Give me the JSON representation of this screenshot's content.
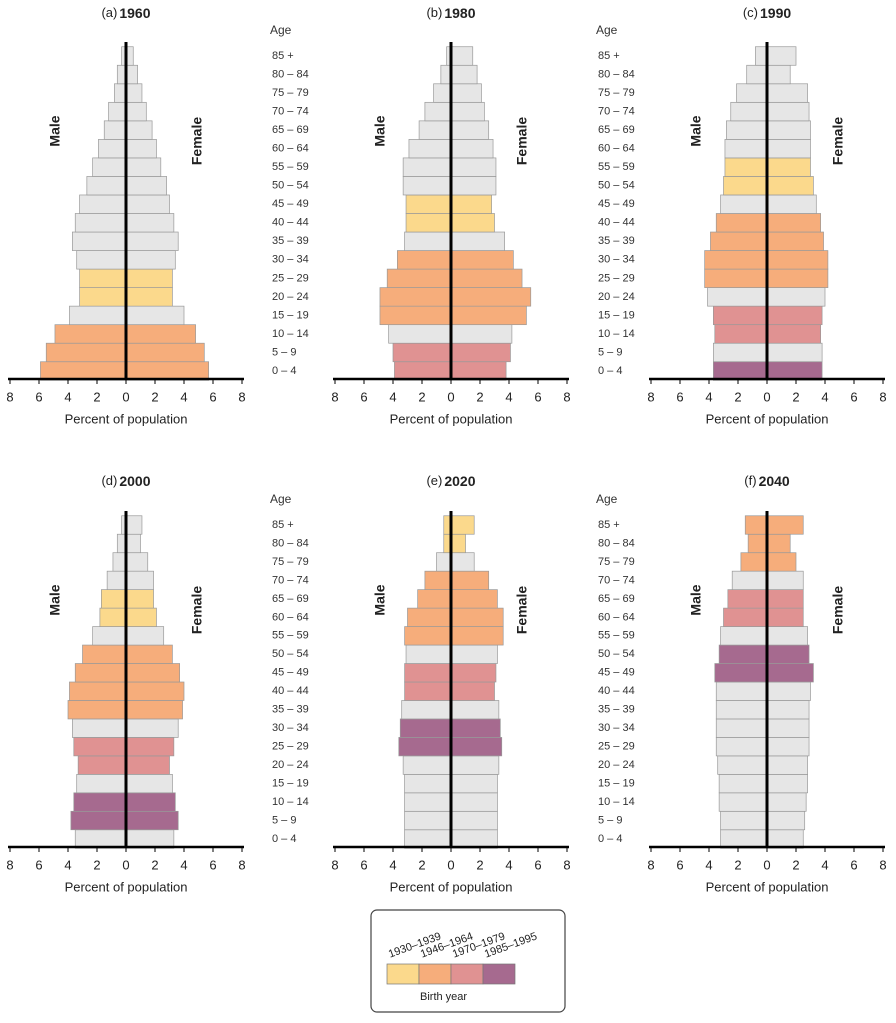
{
  "chart_data": {
    "type": "pyramid",
    "x_label": "Percent of population",
    "male_label": "Male",
    "female_label": "Female",
    "age_label": "Age",
    "categories": [
      "0 – 4",
      "5 – 9",
      "10 – 14",
      "15 – 19",
      "20 – 24",
      "25 – 29",
      "30 – 34",
      "35 – 39",
      "40 – 44",
      "45 – 49",
      "50 – 54",
      "55 – 59",
      "60 – 64",
      "65 – 69",
      "70 – 74",
      "75 – 79",
      "80 – 84",
      "85 +"
    ],
    "xlim": [
      0,
      8
    ],
    "xticks": [
      0,
      2,
      4,
      6,
      8
    ],
    "legend": {
      "title": "Birth year",
      "items": [
        {
          "name": "1930–1939",
          "color": "#fbd98c"
        },
        {
          "name": "1946–1964",
          "color": "#f6ad7b"
        },
        {
          "name": "1970–1979",
          "color": "#e09292"
        },
        {
          "name": "1985–1995",
          "color": "#a66a8f"
        }
      ]
    },
    "panels": [
      {
        "label": "(a)",
        "title": "1960",
        "male": [
          5.9,
          5.5,
          4.9,
          3.9,
          3.2,
          3.2,
          3.4,
          3.7,
          3.5,
          3.2,
          2.7,
          2.3,
          1.9,
          1.5,
          1.2,
          0.8,
          0.6,
          0.3
        ],
        "female": [
          5.7,
          5.4,
          4.8,
          4.0,
          3.2,
          3.2,
          3.4,
          3.6,
          3.3,
          3.0,
          2.8,
          2.4,
          2.1,
          1.8,
          1.4,
          1.1,
          0.8,
          0.5
        ],
        "colors": [
          "#f6ad7b",
          "#f6ad7b",
          "#f6ad7b",
          "#e6e6e6",
          "#fbd98c",
          "#fbd98c",
          "#e6e6e6",
          "#e6e6e6",
          "#e6e6e6",
          "#e6e6e6",
          "#e6e6e6",
          "#e6e6e6",
          "#e6e6e6",
          "#e6e6e6",
          "#e6e6e6",
          "#e6e6e6",
          "#e6e6e6",
          "#e6e6e6"
        ]
      },
      {
        "label": "(b)",
        "title": "1980",
        "male": [
          3.9,
          4.0,
          4.3,
          4.9,
          4.9,
          4.4,
          3.7,
          3.2,
          3.1,
          3.1,
          3.3,
          3.3,
          2.9,
          2.2,
          1.8,
          1.2,
          0.7,
          0.3
        ],
        "female": [
          3.8,
          4.1,
          4.2,
          5.2,
          5.5,
          4.9,
          4.3,
          3.7,
          3.0,
          2.8,
          3.1,
          3.1,
          2.9,
          2.6,
          2.3,
          2.1,
          1.8,
          1.5
        ],
        "colors": [
          "#e09292",
          "#e09292",
          "#e6e6e6",
          "#f6ad7b",
          "#f6ad7b",
          "#f6ad7b",
          "#f6ad7b",
          "#e6e6e6",
          "#fbd98c",
          "#fbd98c",
          "#e6e6e6",
          "#e6e6e6",
          "#e6e6e6",
          "#e6e6e6",
          "#e6e6e6",
          "#e6e6e6",
          "#e6e6e6",
          "#e6e6e6"
        ]
      },
      {
        "label": "(c)",
        "title": "1990",
        "male": [
          3.7,
          3.7,
          3.6,
          3.7,
          4.1,
          4.3,
          4.3,
          3.9,
          3.5,
          3.2,
          3.0,
          2.9,
          2.9,
          2.8,
          2.5,
          2.1,
          1.4,
          0.8
        ],
        "female": [
          3.8,
          3.8,
          3.7,
          3.8,
          4.0,
          4.2,
          4.2,
          3.9,
          3.7,
          3.4,
          3.2,
          3.0,
          3.0,
          3.0,
          2.9,
          2.8,
          1.6,
          2.0
        ],
        "colors": [
          "#a66a8f",
          "#e6e6e6",
          "#e09292",
          "#e09292",
          "#e6e6e6",
          "#f6ad7b",
          "#f6ad7b",
          "#f6ad7b",
          "#f6ad7b",
          "#e6e6e6",
          "#fbd98c",
          "#fbd98c",
          "#e6e6e6",
          "#e6e6e6",
          "#e6e6e6",
          "#e6e6e6",
          "#e6e6e6",
          "#e6e6e6"
        ]
      },
      {
        "label": "(d)",
        "title": "2000",
        "male": [
          3.5,
          3.8,
          3.6,
          3.4,
          3.3,
          3.6,
          3.7,
          4.0,
          3.9,
          3.5,
          3.0,
          2.3,
          1.8,
          1.7,
          1.3,
          0.9,
          0.6,
          0.3
        ],
        "female": [
          3.3,
          3.6,
          3.4,
          3.2,
          3.0,
          3.3,
          3.6,
          3.9,
          4.0,
          3.7,
          3.2,
          2.6,
          2.1,
          1.9,
          1.9,
          1.5,
          1.0,
          1.1
        ],
        "colors": [
          "#e6e6e6",
          "#a66a8f",
          "#a66a8f",
          "#e6e6e6",
          "#e09292",
          "#e09292",
          "#e6e6e6",
          "#f6ad7b",
          "#f6ad7b",
          "#f6ad7b",
          "#f6ad7b",
          "#e6e6e6",
          "#fbd98c",
          "#fbd98c",
          "#e6e6e6",
          "#e6e6e6",
          "#e6e6e6",
          "#e6e6e6"
        ]
      },
      {
        "label": "(e)",
        "title": "2020",
        "male": [
          3.2,
          3.2,
          3.2,
          3.2,
          3.3,
          3.6,
          3.5,
          3.4,
          3.2,
          3.2,
          3.1,
          3.2,
          3.0,
          2.3,
          1.8,
          1.0,
          0.5,
          0.5
        ],
        "female": [
          3.2,
          3.2,
          3.2,
          3.2,
          3.3,
          3.5,
          3.4,
          3.3,
          3.0,
          3.1,
          3.2,
          3.6,
          3.6,
          3.2,
          2.6,
          1.6,
          1.0,
          1.6
        ],
        "colors": [
          "#e6e6e6",
          "#e6e6e6",
          "#e6e6e6",
          "#e6e6e6",
          "#e6e6e6",
          "#a66a8f",
          "#a66a8f",
          "#e6e6e6",
          "#e09292",
          "#e09292",
          "#e6e6e6",
          "#f6ad7b",
          "#f6ad7b",
          "#f6ad7b",
          "#f6ad7b",
          "#e6e6e6",
          "#fbd98c",
          "#fbd98c"
        ]
      },
      {
        "label": "(f)",
        "title": "2040",
        "male": [
          3.2,
          3.2,
          3.3,
          3.3,
          3.4,
          3.5,
          3.5,
          3.5,
          3.5,
          3.6,
          3.3,
          3.2,
          3.0,
          2.7,
          2.4,
          1.8,
          1.3,
          1.5
        ],
        "female": [
          2.5,
          2.6,
          2.7,
          2.8,
          2.8,
          2.9,
          2.9,
          2.9,
          3.0,
          3.2,
          2.9,
          2.8,
          2.5,
          2.5,
          2.5,
          2.0,
          1.6,
          2.5
        ],
        "colors": [
          "#e6e6e6",
          "#e6e6e6",
          "#e6e6e6",
          "#e6e6e6",
          "#e6e6e6",
          "#e6e6e6",
          "#e6e6e6",
          "#e6e6e6",
          "#e6e6e6",
          "#a66a8f",
          "#a66a8f",
          "#e6e6e6",
          "#e09292",
          "#e09292",
          "#e6e6e6",
          "#f6ad7b",
          "#f6ad7b",
          "#f6ad7b"
        ]
      }
    ]
  }
}
